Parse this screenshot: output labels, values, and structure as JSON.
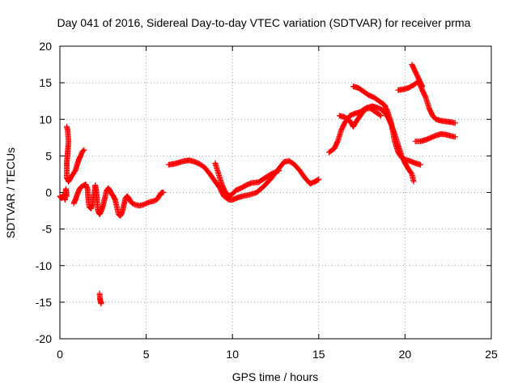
{
  "chart_data": {
    "type": "scatter",
    "title": "Day 041 of 2016, Sidereal Day-to-day VTEC variation (SDTVAR) for receiver prma",
    "xlabel": "GPS time / hours",
    "ylabel": "SDTVAR / TECUs",
    "xlim": [
      0,
      25
    ],
    "ylim": [
      -20,
      20
    ],
    "x_ticks": [
      0,
      5,
      10,
      15,
      20,
      25
    ],
    "x_tick_labels": [
      "0",
      "5",
      "10",
      "15",
      "20",
      "25"
    ],
    "y_ticks": [
      -20,
      -15,
      -10,
      -5,
      0,
      5,
      10,
      15,
      20
    ],
    "y_tick_labels": [
      "-20",
      "-15",
      "-10",
      "-5",
      "0",
      "5",
      "10",
      "15",
      "20"
    ],
    "grid": true,
    "marker": "plus",
    "color": "#ff0000",
    "series": [
      {
        "segments": [
          [
            [
              0.0,
              -0.5
            ],
            [
              0.1,
              -0.8
            ],
            [
              0.2,
              -0.3
            ],
            [
              0.3,
              -1.0
            ],
            [
              0.35,
              0.5
            ],
            [
              0.4,
              -0.5
            ]
          ],
          [
            [
              0.4,
              9.0
            ],
            [
              0.45,
              8.5
            ],
            [
              0.5,
              7.0
            ],
            [
              0.45,
              5.5
            ],
            [
              0.4,
              4.0
            ],
            [
              0.4,
              2.0
            ],
            [
              0.5,
              1.5
            ]
          ],
          [
            [
              0.5,
              1.5
            ],
            [
              0.7,
              2.3
            ],
            [
              0.9,
              3.0
            ],
            [
              1.0,
              3.8
            ],
            [
              1.1,
              4.5
            ],
            [
              1.2,
              5.0
            ],
            [
              1.3,
              5.6
            ],
            [
              1.4,
              5.8
            ]
          ],
          [
            [
              0.8,
              -1.5
            ],
            [
              0.9,
              -1.0
            ],
            [
              1.0,
              -0.3
            ],
            [
              1.1,
              0.3
            ],
            [
              1.2,
              0.7
            ],
            [
              1.4,
              1.0
            ],
            [
              1.5,
              1.1
            ],
            [
              1.6,
              0.5
            ],
            [
              1.65,
              -1.0
            ],
            [
              1.7,
              -2.0
            ],
            [
              1.8,
              -2.2
            ],
            [
              1.9,
              -1.5
            ],
            [
              1.95,
              -0.5
            ],
            [
              2.0,
              0.0
            ],
            [
              2.05,
              1.0
            ],
            [
              2.1,
              0.5
            ],
            [
              2.15,
              -1.0
            ],
            [
              2.2,
              -2.5
            ],
            [
              2.3,
              -3.0
            ],
            [
              2.4,
              -2.5
            ],
            [
              2.5,
              -1.8
            ],
            [
              2.6,
              -0.8
            ],
            [
              2.7,
              0.2
            ],
            [
              2.8,
              0.6
            ],
            [
              2.9,
              0.3
            ],
            [
              3.0,
              -0.2
            ],
            [
              3.1,
              -0.5
            ],
            [
              3.2,
              -1.0
            ],
            [
              3.3,
              -2.0
            ],
            [
              3.4,
              -3.0
            ],
            [
              3.5,
              -3.2
            ],
            [
              3.6,
              -2.8
            ],
            [
              3.7,
              -1.8
            ],
            [
              3.8,
              -0.8
            ],
            [
              3.9,
              -0.5
            ],
            [
              4.0,
              -0.8
            ],
            [
              4.1,
              -1.2
            ],
            [
              4.2,
              -1.5
            ],
            [
              4.4,
              -1.7
            ],
            [
              4.6,
              -1.8
            ],
            [
              4.8,
              -1.7
            ],
            [
              5.0,
              -1.5
            ],
            [
              5.2,
              -1.3
            ],
            [
              5.4,
              -1.2
            ],
            [
              5.6,
              -1.0
            ],
            [
              5.7,
              -0.7
            ],
            [
              5.8,
              -0.3
            ],
            [
              5.9,
              0.0
            ],
            [
              6.0,
              0.0
            ]
          ],
          [
            [
              2.3,
              -13.8
            ],
            [
              2.32,
              -14.5
            ],
            [
              2.35,
              -14.9
            ],
            [
              2.38,
              -15.2
            ],
            [
              2.4,
              -15.0
            ]
          ],
          [
            [
              6.3,
              3.8
            ],
            [
              6.6,
              3.9
            ],
            [
              6.9,
              4.1
            ],
            [
              7.2,
              4.3
            ],
            [
              7.5,
              4.4
            ],
            [
              7.8,
              4.2
            ],
            [
              8.1,
              3.9
            ],
            [
              8.4,
              3.4
            ],
            [
              8.7,
              2.5
            ],
            [
              9.0,
              1.5
            ],
            [
              9.3,
              0.5
            ],
            [
              9.5,
              -0.5
            ],
            [
              9.8,
              -1.0
            ],
            [
              10.0,
              -1.0
            ],
            [
              10.3,
              -0.7
            ],
            [
              10.6,
              -0.5
            ],
            [
              11.0,
              -0.3
            ],
            [
              11.4,
              0.0
            ],
            [
              11.8,
              0.8
            ],
            [
              12.2,
              1.8
            ],
            [
              12.6,
              3.0
            ],
            [
              13.0,
              4.2
            ],
            [
              13.3,
              4.3
            ],
            [
              13.6,
              3.8
            ],
            [
              13.9,
              3.0
            ],
            [
              14.2,
              2.0
            ],
            [
              14.5,
              1.2
            ],
            [
              14.8,
              1.5
            ],
            [
              15.0,
              1.8
            ]
          ],
          [
            [
              9.0,
              4.0
            ],
            [
              9.2,
              2.5
            ],
            [
              9.4,
              1.0
            ],
            [
              9.6,
              0.0
            ],
            [
              9.8,
              -0.5
            ],
            [
              10.0,
              -0.2
            ],
            [
              10.2,
              0.3
            ],
            [
              10.5,
              0.6
            ],
            [
              10.8,
              1.0
            ],
            [
              11.1,
              1.3
            ],
            [
              11.5,
              1.4
            ],
            [
              11.9,
              2.0
            ],
            [
              12.3,
              2.6
            ],
            [
              12.7,
              3.0
            ]
          ],
          [
            [
              15.6,
              5.5
            ],
            [
              15.9,
              6.0
            ],
            [
              16.1,
              7.0
            ],
            [
              16.3,
              8.5
            ],
            [
              16.5,
              9.5
            ],
            [
              16.8,
              10.5
            ],
            [
              17.1,
              10.8
            ],
            [
              17.4,
              11.0
            ],
            [
              17.7,
              11.5
            ],
            [
              18.0,
              11.5
            ],
            [
              18.3,
              11.0
            ],
            [
              18.6,
              10.5
            ]
          ],
          [
            [
              16.2,
              10.5
            ],
            [
              16.5,
              10.3
            ],
            [
              16.8,
              9.8
            ],
            [
              17.0,
              9.0
            ],
            [
              17.2,
              9.8
            ],
            [
              17.5,
              10.8
            ],
            [
              17.8,
              11.6
            ],
            [
              18.1,
              11.8
            ],
            [
              18.4,
              11.6
            ],
            [
              18.6,
              11.4
            ],
            [
              18.8,
              11.0
            ],
            [
              19.0,
              10.3
            ],
            [
              19.2,
              9.3
            ],
            [
              19.4,
              8.0
            ],
            [
              19.6,
              6.5
            ],
            [
              19.8,
              5.0
            ],
            [
              20.0,
              4.0
            ],
            [
              20.2,
              3.2
            ],
            [
              20.4,
              2.5
            ],
            [
              20.5,
              1.5
            ]
          ],
          [
            [
              17.0,
              14.5
            ],
            [
              17.3,
              14.3
            ],
            [
              17.6,
              13.8
            ],
            [
              17.9,
              13.3
            ],
            [
              18.2,
              13.0
            ],
            [
              18.5,
              12.5
            ],
            [
              18.8,
              12.0
            ],
            [
              19.0,
              11.0
            ],
            [
              19.2,
              9.5
            ],
            [
              19.4,
              7.0
            ],
            [
              19.6,
              5.5
            ],
            [
              19.8,
              4.8
            ],
            [
              20.0,
              4.5
            ],
            [
              20.3,
              4.3
            ],
            [
              20.6,
              4.0
            ],
            [
              20.9,
              3.8
            ]
          ],
          [
            [
              19.6,
              14.0
            ],
            [
              19.9,
              14.1
            ],
            [
              20.2,
              14.3
            ],
            [
              20.5,
              14.7
            ],
            [
              20.8,
              15.2
            ],
            [
              21.0,
              14.0
            ],
            [
              21.2,
              13.0
            ],
            [
              21.4,
              11.5
            ],
            [
              21.6,
              10.5
            ],
            [
              21.8,
              10.0
            ],
            [
              22.1,
              9.8
            ],
            [
              22.4,
              9.7
            ],
            [
              22.7,
              9.6
            ],
            [
              22.9,
              9.5
            ]
          ],
          [
            [
              20.4,
              17.5
            ],
            [
              20.6,
              16.5
            ],
            [
              20.8,
              15.5
            ],
            [
              21.0,
              14.5
            ]
          ],
          [
            [
              20.6,
              7.0
            ],
            [
              20.9,
              7.0
            ],
            [
              21.2,
              7.2
            ],
            [
              21.5,
              7.5
            ],
            [
              21.8,
              7.8
            ],
            [
              22.1,
              8.0
            ],
            [
              22.4,
              7.9
            ],
            [
              22.7,
              7.7
            ],
            [
              22.9,
              7.6
            ]
          ]
        ]
      }
    ]
  }
}
